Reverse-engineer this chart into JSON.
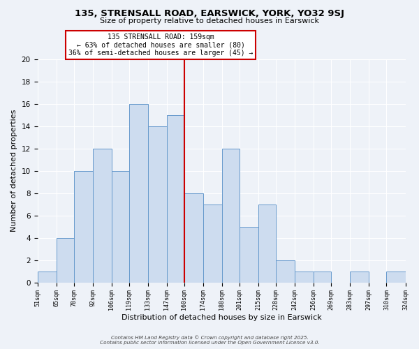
{
  "title": "135, STRENSALL ROAD, EARSWICK, YORK, YO32 9SJ",
  "subtitle": "Size of property relative to detached houses in Earswick",
  "xlabel": "Distribution of detached houses by size in Earswick",
  "ylabel": "Number of detached properties",
  "bins": [
    51,
    65,
    78,
    92,
    106,
    119,
    133,
    147,
    160,
    174,
    188,
    201,
    215,
    228,
    242,
    256,
    269,
    283,
    297,
    310,
    324
  ],
  "counts": [
    1,
    4,
    10,
    12,
    10,
    16,
    14,
    15,
    8,
    7,
    12,
    5,
    7,
    2,
    1,
    1,
    0,
    1,
    0,
    1
  ],
  "bar_color": "#cddcef",
  "bar_edge_color": "#6699cc",
  "reference_line_x": 160,
  "reference_line_color": "#cc0000",
  "annotation_title": "135 STRENSALL ROAD: 159sqm",
  "annotation_line1": "← 63% of detached houses are smaller (80)",
  "annotation_line2": "36% of semi-detached houses are larger (45) →",
  "annotation_box_facecolor": "#ffffff",
  "annotation_box_edgecolor": "#cc0000",
  "ylim": [
    0,
    20
  ],
  "yticks": [
    0,
    2,
    4,
    6,
    8,
    10,
    12,
    14,
    16,
    18,
    20
  ],
  "tick_labels": [
    "51sqm",
    "65sqm",
    "78sqm",
    "92sqm",
    "106sqm",
    "119sqm",
    "133sqm",
    "147sqm",
    "160sqm",
    "174sqm",
    "188sqm",
    "201sqm",
    "215sqm",
    "228sqm",
    "242sqm",
    "256sqm",
    "269sqm",
    "283sqm",
    "297sqm",
    "310sqm",
    "324sqm"
  ],
  "footer1": "Contains HM Land Registry data © Crown copyright and database right 2025.",
  "footer2": "Contains public sector information licensed under the Open Government Licence v3.0.",
  "background_color": "#eef2f8",
  "grid_color": "#ffffff",
  "fig_width": 6.0,
  "fig_height": 5.0,
  "dpi": 100
}
